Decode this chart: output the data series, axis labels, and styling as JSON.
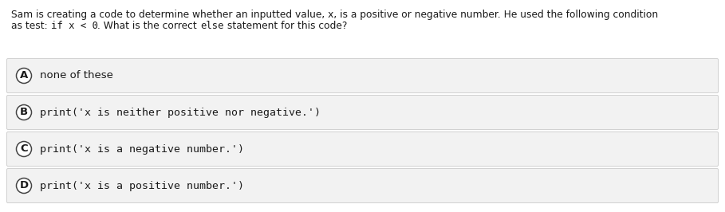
{
  "bg_color": "#ffffff",
  "question_line1": "Sam is creating a code to determine whether an inputted value, x, is a positive or negative number. He used the following condition",
  "question_line2_parts": [
    {
      "text": "as test: ",
      "mono": false
    },
    {
      "text": "if x < 0",
      "mono": true
    },
    {
      "text": ". What is the correct ",
      "mono": false
    },
    {
      "text": "else",
      "mono": true
    },
    {
      "text": " statement for this code?",
      "mono": false
    }
  ],
  "options": [
    {
      "label": "A",
      "text": "none of these",
      "monospace": false
    },
    {
      "label": "B",
      "text": "print('x is neither positive nor negative.')",
      "monospace": true
    },
    {
      "label": "C",
      "text": "print('x is a negative number.')",
      "monospace": true
    },
    {
      "label": "D",
      "text": "print('x is a positive number.')",
      "monospace": true
    }
  ],
  "option_bg_color": "#f2f2f2",
  "option_border_color": "#d0d0d0",
  "circle_face_color": "#ffffff",
  "circle_edge_color": "#444444",
  "text_color": "#1a1a1a",
  "font_size_question": 8.8,
  "font_size_option": 9.5,
  "font_size_label": 9.5,
  "fig_width": 9.09,
  "fig_height": 2.66,
  "dpi": 100
}
